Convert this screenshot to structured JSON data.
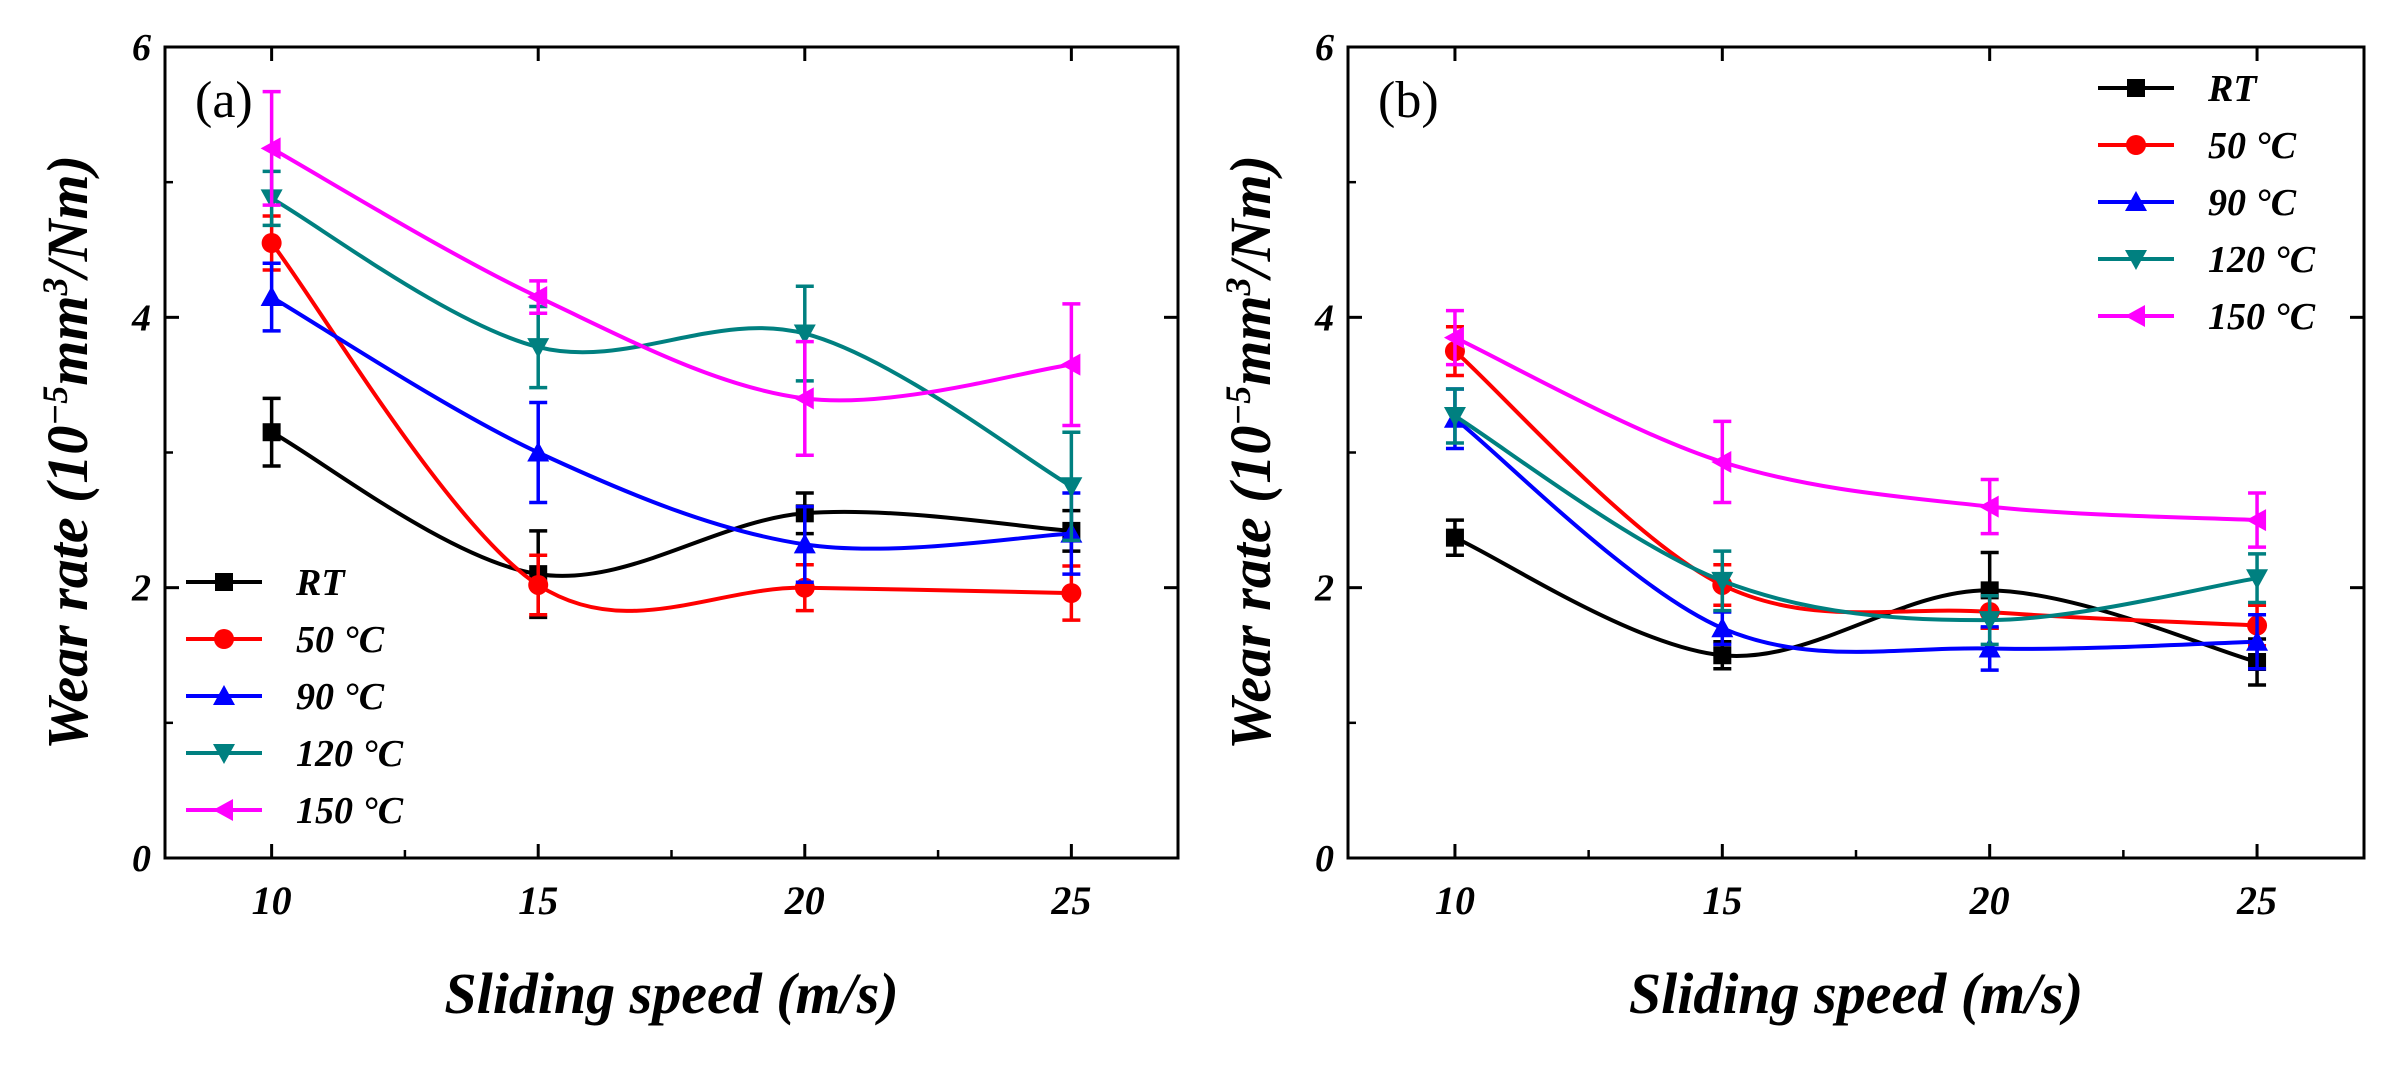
{
  "figure": {
    "caption": ""
  },
  "chart_data": [
    {
      "type": "line",
      "panel_label": "(a)",
      "xlabel": "Sliding speed (m/s)",
      "ylabel_main": "Wear rate (10",
      "ylabel_sup_exp": "−5",
      "ylabel_mid": "mm",
      "ylabel_sup_pow": "3",
      "ylabel_end": "/Nm)",
      "xlim": [
        8,
        27
      ],
      "ylim": [
        0,
        6
      ],
      "xticks": [
        10,
        15,
        20,
        25
      ],
      "yticks": [
        0,
        2,
        4,
        6
      ],
      "legend_position": "bottom-left",
      "x": [
        10,
        15,
        20,
        25
      ],
      "series": [
        {
          "name": "RT",
          "color": "#000000",
          "marker": "square",
          "values": [
            3.15,
            2.1,
            2.55,
            2.42
          ],
          "errors": [
            0.25,
            0.32,
            0.15,
            0.15
          ]
        },
        {
          "name": "50 °C",
          "color": "#ff0000",
          "marker": "circle",
          "values": [
            4.55,
            2.02,
            2.0,
            1.96
          ],
          "errors": [
            0.2,
            0.22,
            0.17,
            0.2
          ]
        },
        {
          "name": "90 °C",
          "color": "#0000ff",
          "marker": "triangle-up",
          "values": [
            4.15,
            3.0,
            2.32,
            2.4
          ],
          "errors": [
            0.25,
            0.37,
            0.28,
            0.3
          ]
        },
        {
          "name": "120 °C",
          "color": "#008080",
          "marker": "triangle-down",
          "values": [
            4.88,
            3.78,
            3.88,
            2.75
          ],
          "errors": [
            0.2,
            0.3,
            0.35,
            0.4
          ]
        },
        {
          "name": "150 °C",
          "color": "#ff00ff",
          "marker": "triangle-left",
          "values": [
            5.25,
            4.15,
            3.4,
            3.65
          ],
          "errors": [
            0.42,
            0.12,
            0.42,
            0.45
          ]
        }
      ]
    },
    {
      "type": "line",
      "panel_label": "(b)",
      "xlabel": "Sliding speed (m/s)",
      "ylabel_main": "Wear rate (10",
      "ylabel_sup_exp": "−5",
      "ylabel_mid": "mm",
      "ylabel_sup_pow": "3",
      "ylabel_end": "/Nm)",
      "xlim": [
        8,
        27
      ],
      "ylim": [
        0,
        6
      ],
      "xticks": [
        10,
        15,
        20,
        25
      ],
      "yticks": [
        0,
        2,
        4,
        6
      ],
      "legend_position": "top-right",
      "x": [
        10,
        15,
        20,
        25
      ],
      "series": [
        {
          "name": "RT",
          "color": "#000000",
          "marker": "square",
          "values": [
            2.37,
            1.5,
            1.98,
            1.45
          ],
          "errors": [
            0.13,
            0.1,
            0.28,
            0.17
          ]
        },
        {
          "name": "50 °C",
          "color": "#ff0000",
          "marker": "circle",
          "values": [
            3.75,
            2.02,
            1.82,
            1.72
          ],
          "errors": [
            0.18,
            0.15,
            0.12,
            0.15
          ]
        },
        {
          "name": "90 °C",
          "color": "#0000ff",
          "marker": "triangle-up",
          "values": [
            3.25,
            1.7,
            1.55,
            1.6
          ],
          "errors": [
            0.22,
            0.12,
            0.16,
            0.2
          ]
        },
        {
          "name": "120 °C",
          "color": "#008080",
          "marker": "triangle-down",
          "values": [
            3.27,
            2.05,
            1.76,
            2.07
          ],
          "errors": [
            0.2,
            0.22,
            0.18,
            0.18
          ]
        },
        {
          "name": "150 °C",
          "color": "#ff00ff",
          "marker": "triangle-left",
          "values": [
            3.85,
            2.93,
            2.6,
            2.5
          ],
          "errors": [
            0.2,
            0.3,
            0.2,
            0.2
          ]
        }
      ]
    }
  ]
}
